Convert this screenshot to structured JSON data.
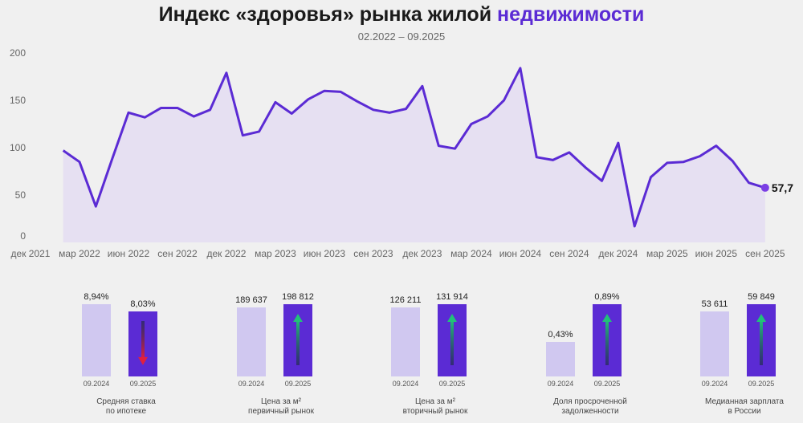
{
  "title": {
    "main": "Индекс «здоровья» рынка жилой",
    "accent": "недвижимости"
  },
  "subtitle": "02.2022 – 09.2025",
  "colors": {
    "line": "#5b2bd4",
    "fill": "#e6e0f2",
    "accent": "#5b2bd4",
    "bar_prev": "#d0c8f0",
    "bar_curr": "#5b2bd4",
    "up": "#22c07a",
    "down": "#e02040"
  },
  "chart_data": {
    "type": "area",
    "ylim": [
      0,
      200
    ],
    "yticks": [
      0,
      50,
      100,
      150,
      200
    ],
    "xtick_labels": [
      "дек 2021",
      "мар 2022",
      "июн 2022",
      "сен 2022",
      "дек 2022",
      "мар 2023",
      "июн 2023",
      "сен 2023",
      "дек 2023",
      "мар 2024",
      "июн 2024",
      "сен 2024",
      "дек 2024",
      "мар 2025",
      "июн 2025",
      "сен 2025"
    ],
    "x_start": "2022-02",
    "x_end": "2025-09",
    "values": [
      97,
      85,
      38,
      88,
      137,
      132,
      142,
      142,
      133,
      140,
      179,
      113,
      117,
      148,
      136,
      151,
      160,
      159,
      149,
      140,
      137,
      141,
      165,
      102,
      99,
      125,
      133,
      150,
      184,
      90,
      87,
      95,
      79,
      65,
      105,
      17,
      69,
      84,
      85,
      91,
      102,
      86,
      63,
      57.7
    ],
    "last_label": "57,7",
    "grid": false
  },
  "indicators": [
    {
      "caption": "Средняя ставка\nпо ипотеке",
      "prev": {
        "period": "09.2024",
        "label": "8,94%",
        "value": 8.94
      },
      "curr": {
        "period": "09.2025",
        "label": "8,03%",
        "value": 8.03
      },
      "trend": "down"
    },
    {
      "caption": "Цена за м²\nпервичный рынок",
      "prev": {
        "period": "09.2024",
        "label": "189 637",
        "value": 189637
      },
      "curr": {
        "period": "09.2025",
        "label": "198 812",
        "value": 198812
      },
      "trend": "up"
    },
    {
      "caption": "Цена за м²\nвторичный рынок",
      "prev": {
        "period": "09.2024",
        "label": "126 211",
        "value": 126211
      },
      "curr": {
        "period": "09.2025",
        "label": "131 914",
        "value": 131914
      },
      "trend": "up"
    },
    {
      "caption": "Доля просроченной\nзадолженности",
      "prev": {
        "period": "09.2024",
        "label": "0,43%",
        "value": 0.43
      },
      "curr": {
        "period": "09.2025",
        "label": "0,89%",
        "value": 0.89
      },
      "trend": "up"
    },
    {
      "caption": "Медианная зарплата\nв России",
      "prev": {
        "period": "09.2024",
        "label": "53 611",
        "value": 53611
      },
      "curr": {
        "period": "09.2025",
        "label": "59 849",
        "value": 59849
      },
      "trend": "up"
    }
  ]
}
